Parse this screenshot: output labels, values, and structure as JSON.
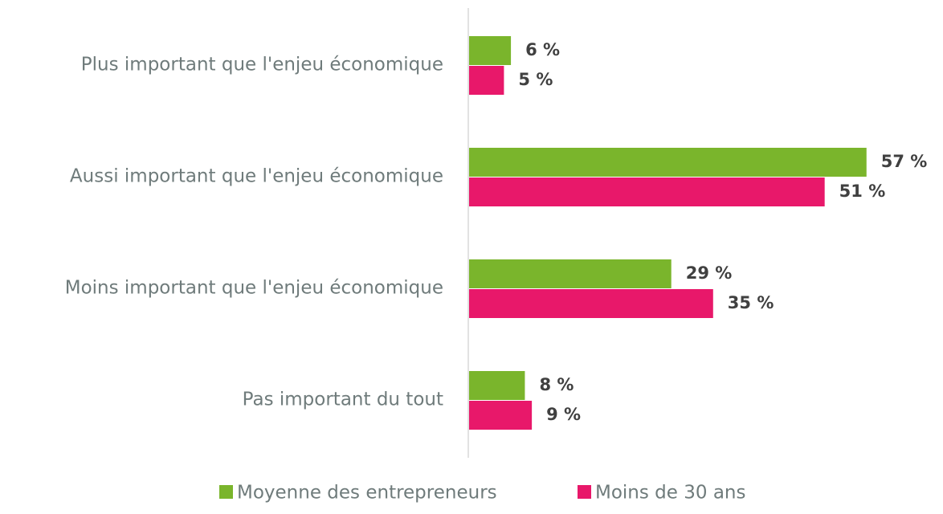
{
  "chart_data": {
    "type": "bar",
    "orientation": "horizontal",
    "categories": [
      "Plus important que l'enjeu économique",
      "Aussi important que l'enjeu économique",
      "Moins important que l'enjeu économique",
      "Pas important du tout"
    ],
    "series": [
      {
        "name": "Moyenne des entrepreneurs",
        "color": "#7ab52c",
        "values": [
          6,
          57,
          29,
          8
        ],
        "value_labels": [
          "6 %",
          "57 %",
          "29 %",
          "8 %"
        ]
      },
      {
        "name": "Moins de 30 ans",
        "color": "#e8186a",
        "values": [
          5,
          51,
          35,
          9
        ],
        "value_labels": [
          "5 %",
          "51 %",
          "35 %",
          "9 %"
        ]
      }
    ],
    "legend": "bottom"
  }
}
